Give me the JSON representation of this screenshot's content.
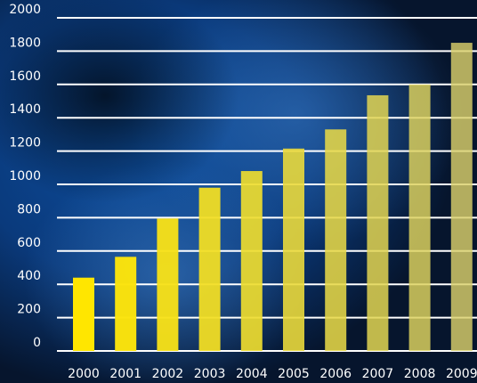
{
  "chart_data": {
    "type": "bar",
    "title": "",
    "xlabel": "",
    "ylabel": "",
    "ylim": [
      0,
      2000
    ],
    "yticks": [
      0,
      200,
      400,
      600,
      800,
      1000,
      1200,
      1400,
      1600,
      1800,
      2000
    ],
    "grid": true,
    "categories": [
      "2000",
      "2001",
      "2002",
      "2003",
      "2004",
      "2005",
      "2006",
      "2007",
      "2008",
      "2009"
    ],
    "series": [
      {
        "values": [
          440,
          565,
          795,
          980,
          1080,
          1215,
          1330,
          1535,
          1600,
          1850
        ]
      }
    ]
  },
  "colors": {
    "background_dark": "#07152b",
    "background_blue": "#0b4fa8",
    "grid": "#ffffff",
    "bar_start": "#ffe600",
    "bar_end": "#d9cf6a"
  }
}
